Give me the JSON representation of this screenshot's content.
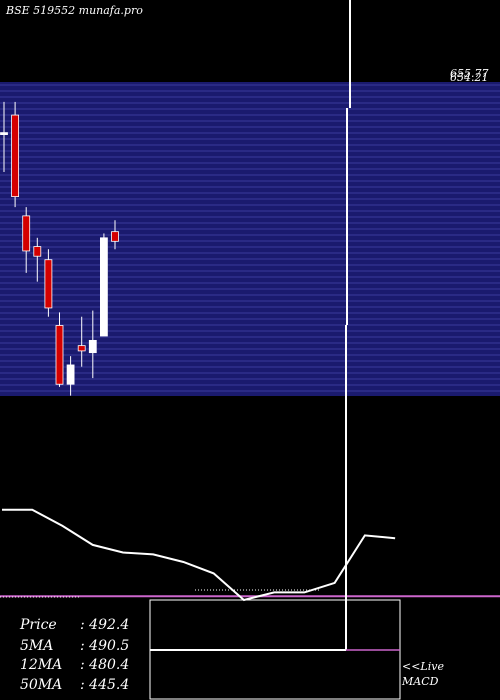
{
  "header": {
    "source": "BSE 519552 munafa.pro"
  },
  "colors": {
    "background": "#000000",
    "price_band": "#1a1a6e",
    "band_line": "#3a3a9c",
    "bear_candle": "#d40000",
    "bull_candle": "#ffffff",
    "ma_line": "#ffffff",
    "signal_line": "#cc66cc"
  },
  "chart_data": [
    {
      "type": "candlestick",
      "price_range": [
        300,
        665
      ],
      "top_labels": [
        "655.77",
        "654.21"
      ],
      "candles": [
        {
          "open": 605,
          "high": 640,
          "low": 560,
          "close": 605,
          "direction": "up"
        },
        {
          "open": 625,
          "high": 640,
          "low": 520,
          "close": 532,
          "direction": "down"
        },
        {
          "open": 510,
          "high": 520,
          "low": 445,
          "close": 470,
          "direction": "down"
        },
        {
          "open": 475,
          "high": 485,
          "low": 435,
          "close": 464,
          "direction": "down"
        },
        {
          "open": 460,
          "high": 472,
          "low": 395,
          "close": 405,
          "direction": "down"
        },
        {
          "open": 385,
          "high": 400,
          "low": 315,
          "close": 318,
          "direction": "down"
        },
        {
          "open": 318,
          "high": 350,
          "low": 305,
          "close": 340,
          "direction": "up"
        },
        {
          "open": 362,
          "high": 395,
          "low": 338,
          "close": 356,
          "direction": "down"
        },
        {
          "open": 354,
          "high": 402,
          "low": 325,
          "close": 368,
          "direction": "up"
        },
        {
          "open": 373,
          "high": 490,
          "low": 373,
          "close": 485,
          "direction": "up"
        },
        {
          "open": 492,
          "high": 505,
          "low": 472,
          "close": 481,
          "direction": "down"
        }
      ]
    },
    {
      "type": "line",
      "title": "MACD",
      "series": [
        {
          "values": [
            95,
            95,
            78,
            58,
            50,
            48,
            40,
            28,
            0,
            8,
            8,
            18,
            68,
            65
          ]
        },
        {
          "values": [
            4,
            4,
            4,
            4,
            4,
            4,
            4,
            4,
            4,
            4,
            4,
            4,
            4,
            4
          ]
        }
      ]
    }
  ],
  "info": {
    "rows": [
      {
        "label": "Price",
        "value": ": 492.4"
      },
      {
        "label": "5MA",
        "value": ": 490.5"
      },
      {
        "label": "12MA",
        "value": ": 480.4"
      },
      {
        "label": "50MA",
        "value": ": 445.4"
      }
    ]
  },
  "legend": {
    "live": "<<Live",
    "indicator": "MACD"
  }
}
